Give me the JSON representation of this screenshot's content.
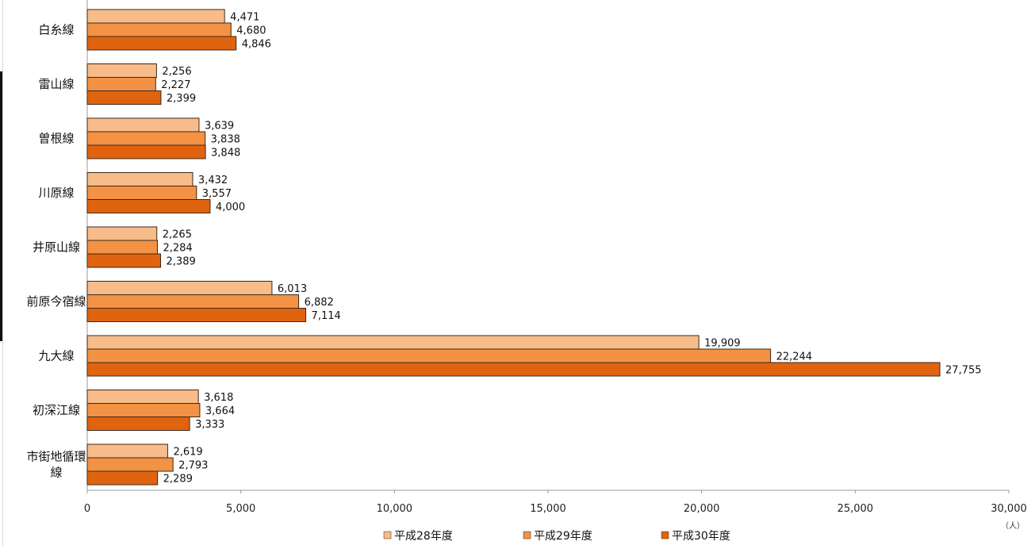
{
  "chart_data": {
    "type": "bar",
    "orientation": "horizontal",
    "categories": [
      "白糸線",
      "雷山線",
      "曽根線",
      "川原線",
      "井原山線",
      "前原今宿線",
      "九大線",
      "初深江線",
      "市街地循環線"
    ],
    "category_lines": [
      [
        "白糸線"
      ],
      [
        "雷山線"
      ],
      [
        "曽根線"
      ],
      [
        "川原線"
      ],
      [
        "井原山線"
      ],
      [
        "前原今宿線"
      ],
      [
        "九大線"
      ],
      [
        "初深江線"
      ],
      [
        "市街地循環",
        "線"
      ]
    ],
    "series": [
      {
        "name": "平成28年度",
        "color": "#f8bb8a",
        "values": [
          4471,
          2256,
          3639,
          3432,
          2265,
          6013,
          19909,
          3618,
          2619
        ]
      },
      {
        "name": "平成29年度",
        "color": "#f39244",
        "values": [
          4680,
          2227,
          3838,
          3557,
          2284,
          6882,
          22244,
          3664,
          2793
        ]
      },
      {
        "name": "平成30年度",
        "color": "#e0630f",
        "values": [
          4846,
          2399,
          3848,
          4000,
          2389,
          7114,
          27755,
          3333,
          2289
        ]
      }
    ],
    "xlim": [
      0,
      30000
    ],
    "ticks": [
      0,
      5000,
      10000,
      15000,
      20000,
      25000,
      30000
    ],
    "tick_labels": [
      "0",
      "5,000",
      "10,000",
      "15,000",
      "20,000",
      "25,000",
      "30,000"
    ],
    "unit_label": "（人）",
    "data_labels": true,
    "grid": false,
    "legend_position": "bottom"
  }
}
